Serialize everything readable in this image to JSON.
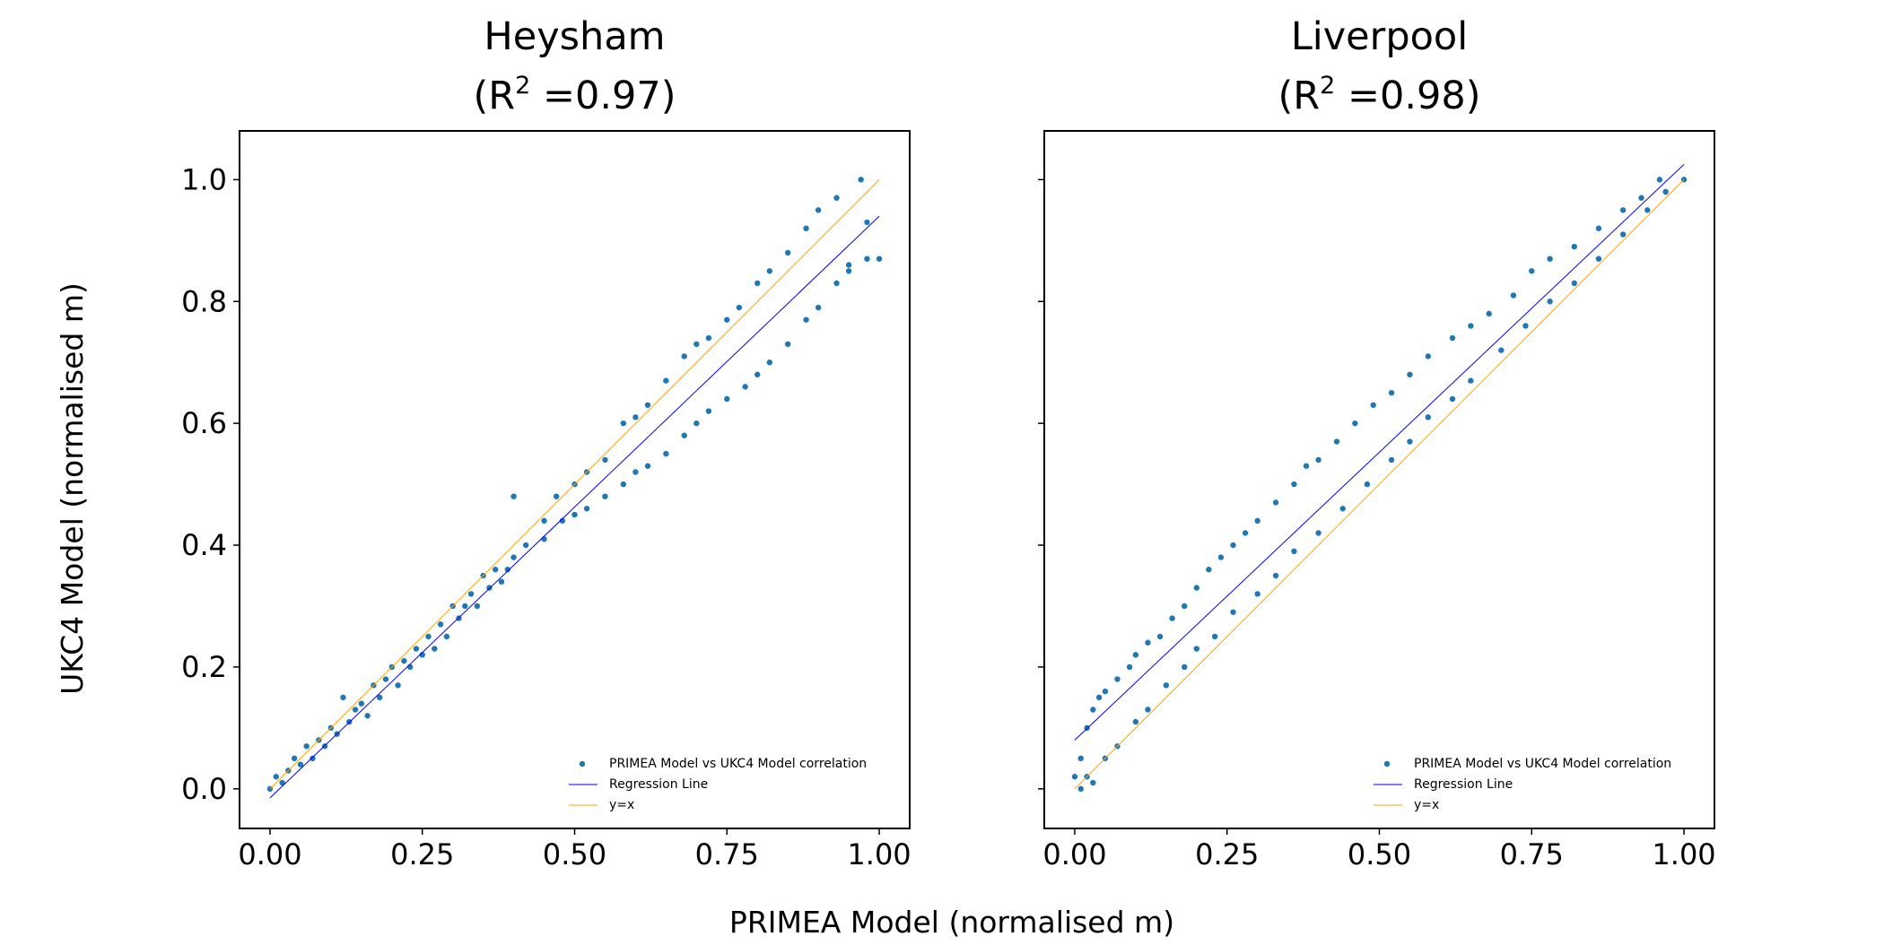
{
  "chart_data": [
    {
      "type": "scatter",
      "title_line1": "Heysham",
      "title_line2_prefix": "(R",
      "title_sup": "2",
      "title_line2_suffix": " =0.97)",
      "xlim": [
        -0.05,
        1.05
      ],
      "ylim": [
        -0.065,
        1.08
      ],
      "xticks": [
        "0.00",
        "0.25",
        "0.50",
        "0.75",
        "1.00"
      ],
      "yticks": [
        "0.0",
        "0.2",
        "0.4",
        "0.6",
        "0.8",
        "1.0"
      ],
      "ytick_labels_visible": true,
      "legend": [
        "PRIMEA Model vs UKC4 Model correlation",
        "Regression Line",
        "y=x"
      ],
      "legend_placement": "lower-right",
      "regression": {
        "slope": 0.955,
        "intercept": -0.015
      },
      "points": [
        [
          0,
          0
        ],
        [
          0.01,
          0.02
        ],
        [
          0.02,
          0.01
        ],
        [
          0.03,
          0.03
        ],
        [
          0.04,
          0.05
        ],
        [
          0.05,
          0.04
        ],
        [
          0.06,
          0.07
        ],
        [
          0.07,
          0.05
        ],
        [
          0.08,
          0.08
        ],
        [
          0.09,
          0.07
        ],
        [
          0.1,
          0.1
        ],
        [
          0.11,
          0.09
        ],
        [
          0.12,
          0.15
        ],
        [
          0.13,
          0.11
        ],
        [
          0.14,
          0.13
        ],
        [
          0.15,
          0.14
        ],
        [
          0.16,
          0.12
        ],
        [
          0.17,
          0.17
        ],
        [
          0.18,
          0.15
        ],
        [
          0.19,
          0.18
        ],
        [
          0.2,
          0.2
        ],
        [
          0.21,
          0.17
        ],
        [
          0.22,
          0.21
        ],
        [
          0.23,
          0.2
        ],
        [
          0.24,
          0.23
        ],
        [
          0.25,
          0.22
        ],
        [
          0.26,
          0.25
        ],
        [
          0.27,
          0.23
        ],
        [
          0.28,
          0.27
        ],
        [
          0.29,
          0.25
        ],
        [
          0.3,
          0.3
        ],
        [
          0.31,
          0.28
        ],
        [
          0.32,
          0.3
        ],
        [
          0.33,
          0.32
        ],
        [
          0.34,
          0.3
        ],
        [
          0.35,
          0.35
        ],
        [
          0.36,
          0.33
        ],
        [
          0.37,
          0.36
        ],
        [
          0.38,
          0.34
        ],
        [
          0.39,
          0.36
        ],
        [
          0.4,
          0.48
        ],
        [
          0.4,
          0.38
        ],
        [
          0.45,
          0.44
        ],
        [
          0.47,
          0.48
        ],
        [
          0.5,
          0.5
        ],
        [
          0.52,
          0.52
        ],
        [
          0.55,
          0.54
        ],
        [
          0.58,
          0.6
        ],
        [
          0.6,
          0.61
        ],
        [
          0.62,
          0.63
        ],
        [
          0.65,
          0.67
        ],
        [
          0.68,
          0.71
        ],
        [
          0.7,
          0.73
        ],
        [
          0.72,
          0.74
        ],
        [
          0.75,
          0.77
        ],
        [
          0.77,
          0.79
        ],
        [
          0.8,
          0.83
        ],
        [
          0.82,
          0.85
        ],
        [
          0.85,
          0.88
        ],
        [
          0.88,
          0.92
        ],
        [
          0.9,
          0.95
        ],
        [
          0.93,
          0.97
        ],
        [
          0.97,
          1.0
        ],
        [
          0.42,
          0.4
        ],
        [
          0.45,
          0.41
        ],
        [
          0.48,
          0.44
        ],
        [
          0.5,
          0.45
        ],
        [
          0.52,
          0.46
        ],
        [
          0.55,
          0.48
        ],
        [
          0.58,
          0.5
        ],
        [
          0.6,
          0.52
        ],
        [
          0.62,
          0.53
        ],
        [
          0.65,
          0.55
        ],
        [
          0.68,
          0.58
        ],
        [
          0.7,
          0.6
        ],
        [
          0.72,
          0.62
        ],
        [
          0.75,
          0.64
        ],
        [
          0.78,
          0.66
        ],
        [
          0.8,
          0.68
        ],
        [
          0.82,
          0.7
        ],
        [
          0.85,
          0.73
        ],
        [
          0.88,
          0.77
        ],
        [
          0.9,
          0.79
        ],
        [
          0.93,
          0.83
        ],
        [
          0.95,
          0.85
        ],
        [
          0.98,
          0.87
        ],
        [
          1.0,
          0.87
        ],
        [
          0.98,
          0.93
        ],
        [
          0.95,
          0.86
        ]
      ]
    },
    {
      "type": "scatter",
      "title_line1": "Liverpool",
      "title_line2_prefix": "(R",
      "title_sup": "2",
      "title_line2_suffix": " =0.98)",
      "xlim": [
        -0.05,
        1.05
      ],
      "ylim": [
        -0.065,
        1.08
      ],
      "xticks": [
        "0.00",
        "0.25",
        "0.50",
        "0.75",
        "1.00"
      ],
      "yticks": [
        "0.0",
        "0.2",
        "0.4",
        "0.6",
        "0.8",
        "1.0"
      ],
      "ytick_labels_visible": false,
      "legend": [
        "PRIMEA Model vs UKC4 Model correlation",
        "Regression Line",
        "y=x"
      ],
      "legend_placement": "lower-right",
      "regression": {
        "slope": 0.945,
        "intercept": 0.08
      },
      "points": [
        [
          0.01,
          0.05
        ],
        [
          0.02,
          0.1
        ],
        [
          0.03,
          0.13
        ],
        [
          0.04,
          0.15
        ],
        [
          0.05,
          0.16
        ],
        [
          0.07,
          0.18
        ],
        [
          0.09,
          0.2
        ],
        [
          0.1,
          0.22
        ],
        [
          0.12,
          0.24
        ],
        [
          0.14,
          0.25
        ],
        [
          0.16,
          0.28
        ],
        [
          0.18,
          0.3
        ],
        [
          0.2,
          0.33
        ],
        [
          0.22,
          0.36
        ],
        [
          0.24,
          0.38
        ],
        [
          0.26,
          0.4
        ],
        [
          0.28,
          0.42
        ],
        [
          0.3,
          0.44
        ],
        [
          0.33,
          0.47
        ],
        [
          0.36,
          0.5
        ],
        [
          0.38,
          0.53
        ],
        [
          0.4,
          0.54
        ],
        [
          0.43,
          0.57
        ],
        [
          0.46,
          0.6
        ],
        [
          0.49,
          0.63
        ],
        [
          0.52,
          0.65
        ],
        [
          0.55,
          0.68
        ],
        [
          0.58,
          0.71
        ],
        [
          0.62,
          0.74
        ],
        [
          0.65,
          0.76
        ],
        [
          0.68,
          0.78
        ],
        [
          0.72,
          0.81
        ],
        [
          0.75,
          0.85
        ],
        [
          0.78,
          0.87
        ],
        [
          0.82,
          0.89
        ],
        [
          0.86,
          0.92
        ],
        [
          0.9,
          0.95
        ],
        [
          0.93,
          0.97
        ],
        [
          0.96,
          1.0
        ],
        [
          1.0,
          1.0
        ],
        [
          0.0,
          0.02
        ],
        [
          0.01,
          0.0
        ],
        [
          0.02,
          0.02
        ],
        [
          0.03,
          0.01
        ],
        [
          0.05,
          0.05
        ],
        [
          0.07,
          0.07
        ],
        [
          0.1,
          0.11
        ],
        [
          0.12,
          0.13
        ],
        [
          0.15,
          0.17
        ],
        [
          0.18,
          0.2
        ],
        [
          0.2,
          0.23
        ],
        [
          0.23,
          0.25
        ],
        [
          0.26,
          0.29
        ],
        [
          0.3,
          0.32
        ],
        [
          0.33,
          0.35
        ],
        [
          0.36,
          0.39
        ],
        [
          0.4,
          0.42
        ],
        [
          0.44,
          0.46
        ],
        [
          0.48,
          0.5
        ],
        [
          0.52,
          0.54
        ],
        [
          0.55,
          0.57
        ],
        [
          0.58,
          0.61
        ],
        [
          0.62,
          0.64
        ],
        [
          0.65,
          0.67
        ],
        [
          0.7,
          0.72
        ],
        [
          0.74,
          0.76
        ],
        [
          0.78,
          0.8
        ],
        [
          0.82,
          0.83
        ],
        [
          0.86,
          0.87
        ],
        [
          0.9,
          0.91
        ],
        [
          0.94,
          0.95
        ],
        [
          0.97,
          0.98
        ]
      ]
    }
  ],
  "xlabel": "PRIMEA Model (normalised m)",
  "ylabel": "UKC4 Model (normalised m)",
  "colors": {
    "points": "#1f77b4",
    "regression": "#0000ff",
    "identity": "#ffa500",
    "axes": "#000000"
  }
}
